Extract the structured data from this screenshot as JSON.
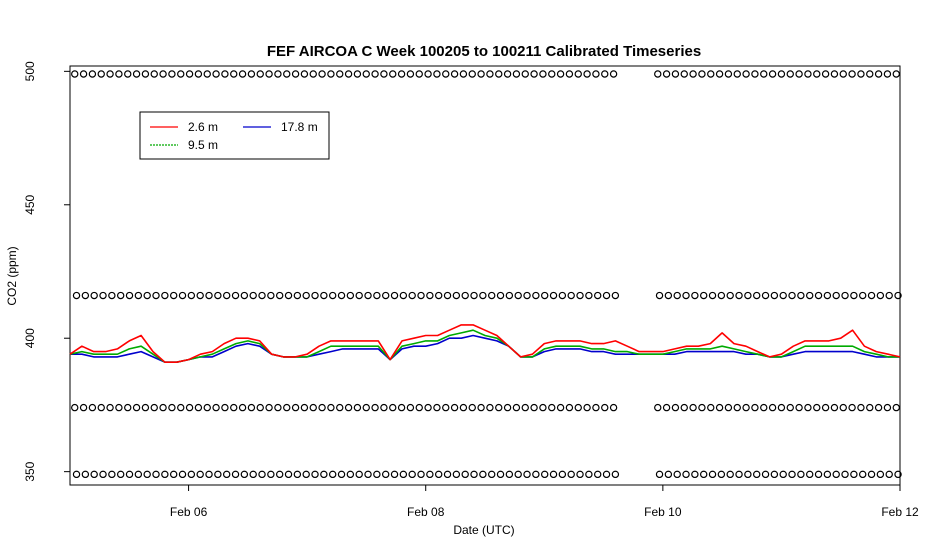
{
  "chart_data": {
    "type": "line",
    "title": "FEF AIRCOA C  Week 100205 to 100211  Calibrated Timeseries",
    "xlabel": "Date (UTC)",
    "ylabel": "CO2 (ppm)",
    "xlim": [
      5.0,
      12.0
    ],
    "ylim": [
      345,
      502
    ],
    "x_ticks": [
      {
        "value": 6,
        "label": "Feb 06"
      },
      {
        "value": 8,
        "label": "Feb 08"
      },
      {
        "value": 10,
        "label": "Feb 10"
      },
      {
        "value": 12,
        "label": "Feb 12"
      }
    ],
    "y_ticks": [
      {
        "value": 350,
        "label": "350"
      },
      {
        "value": 400,
        "label": "400"
      },
      {
        "value": 450,
        "label": "450"
      },
      {
        "value": 500,
        "label": "500"
      }
    ],
    "legend": {
      "placement": "top-left",
      "entries": [
        {
          "name": "2.6 m",
          "color": "#ff0000"
        },
        {
          "name": "9.5 m",
          "color": "#00aa00"
        },
        {
          "name": "17.8 m",
          "color": "#0000cc"
        }
      ]
    },
    "series": [
      {
        "name": "17.8 m",
        "color": "#0000cc",
        "x": [
          5.0,
          5.1,
          5.2,
          5.3,
          5.4,
          5.5,
          5.6,
          5.7,
          5.8,
          5.9,
          6.0,
          6.1,
          6.2,
          6.3,
          6.4,
          6.5,
          6.6,
          6.7,
          6.8,
          6.9,
          7.0,
          7.1,
          7.2,
          7.3,
          7.4,
          7.5,
          7.6,
          7.7,
          7.8,
          7.9,
          8.0,
          8.1,
          8.2,
          8.3,
          8.4,
          8.5,
          8.6,
          8.7,
          8.8,
          8.9,
          9.0,
          9.1,
          9.2,
          9.3,
          9.4,
          9.5,
          9.6,
          9.7,
          9.8,
          9.9,
          10.0,
          10.1,
          10.2,
          10.3,
          10.4,
          10.5,
          10.6,
          10.7,
          10.8,
          10.9,
          11.0,
          11.1,
          11.2,
          11.3,
          11.4,
          11.5,
          11.6,
          11.7,
          11.8,
          11.9,
          12.0
        ],
        "values": [
          394,
          394,
          393,
          393,
          393,
          394,
          395,
          393,
          391,
          391,
          392,
          393,
          393,
          395,
          397,
          398,
          397,
          394,
          393,
          393,
          393,
          394,
          395,
          396,
          396,
          396,
          396,
          392,
          396,
          397,
          397,
          398,
          400,
          400,
          401,
          400,
          399,
          397,
          393,
          393,
          395,
          396,
          396,
          396,
          395,
          395,
          394,
          394,
          394,
          394,
          394,
          394,
          395,
          395,
          395,
          395,
          395,
          394,
          394,
          393,
          393,
          394,
          395,
          395,
          395,
          395,
          395,
          394,
          393,
          393,
          393
        ]
      },
      {
        "name": "9.5 m",
        "color": "#00aa00",
        "x": [
          5.0,
          5.1,
          5.2,
          5.3,
          5.4,
          5.5,
          5.6,
          5.7,
          5.8,
          5.9,
          6.0,
          6.1,
          6.2,
          6.3,
          6.4,
          6.5,
          6.6,
          6.7,
          6.8,
          6.9,
          7.0,
          7.1,
          7.2,
          7.3,
          7.4,
          7.5,
          7.6,
          7.7,
          7.8,
          7.9,
          8.0,
          8.1,
          8.2,
          8.3,
          8.4,
          8.5,
          8.6,
          8.7,
          8.8,
          8.9,
          9.0,
          9.1,
          9.2,
          9.3,
          9.4,
          9.5,
          9.6,
          9.7,
          9.8,
          9.9,
          10.0,
          10.1,
          10.2,
          10.3,
          10.4,
          10.5,
          10.6,
          10.7,
          10.8,
          10.9,
          11.0,
          11.1,
          11.2,
          11.3,
          11.4,
          11.5,
          11.6,
          11.7,
          11.8,
          11.9,
          12.0
        ],
        "values": [
          394,
          395,
          394,
          394,
          394,
          396,
          397,
          394,
          391,
          391,
          392,
          393,
          394,
          396,
          398,
          399,
          398,
          394,
          393,
          393,
          393,
          395,
          397,
          397,
          397,
          397,
          397,
          392,
          397,
          398,
          399,
          399,
          401,
          402,
          403,
          401,
          400,
          397,
          393,
          393,
          396,
          397,
          397,
          397,
          396,
          396,
          395,
          395,
          394,
          394,
          394,
          395,
          396,
          396,
          396,
          397,
          396,
          395,
          394,
          393,
          393,
          395,
          397,
          397,
          397,
          397,
          397,
          395,
          394,
          393,
          393
        ]
      },
      {
        "name": "2.6 m",
        "color": "#ff0000",
        "x": [
          5.0,
          5.1,
          5.2,
          5.3,
          5.4,
          5.5,
          5.6,
          5.7,
          5.8,
          5.9,
          6.0,
          6.1,
          6.2,
          6.3,
          6.4,
          6.5,
          6.6,
          6.7,
          6.8,
          6.9,
          7.0,
          7.1,
          7.2,
          7.3,
          7.4,
          7.5,
          7.6,
          7.7,
          7.8,
          7.9,
          8.0,
          8.1,
          8.2,
          8.3,
          8.4,
          8.5,
          8.6,
          8.7,
          8.8,
          8.9,
          9.0,
          9.1,
          9.2,
          9.3,
          9.4,
          9.5,
          9.6,
          9.7,
          9.8,
          9.9,
          10.0,
          10.1,
          10.2,
          10.3,
          10.4,
          10.5,
          10.6,
          10.7,
          10.8,
          10.9,
          11.0,
          11.1,
          11.2,
          11.3,
          11.4,
          11.5,
          11.6,
          11.7,
          11.8,
          11.9,
          12.0
        ],
        "values": [
          394,
          397,
          395,
          395,
          396,
          399,
          401,
          395,
          391,
          391,
          392,
          394,
          395,
          398,
          400,
          400,
          399,
          394,
          393,
          393,
          394,
          397,
          399,
          399,
          399,
          399,
          399,
          392,
          399,
          400,
          401,
          401,
          403,
          405,
          405,
          403,
          401,
          397,
          393,
          394,
          398,
          399,
          399,
          399,
          398,
          398,
          399,
          397,
          395,
          395,
          395,
          396,
          397,
          397,
          398,
          402,
          398,
          397,
          395,
          393,
          394,
          397,
          399,
          399,
          399,
          400,
          403,
          397,
          395,
          394,
          393
        ]
      }
    ],
    "flag_rows": {
      "marker": "circle",
      "y": [
        499,
        416,
        374,
        349
      ]
    }
  }
}
